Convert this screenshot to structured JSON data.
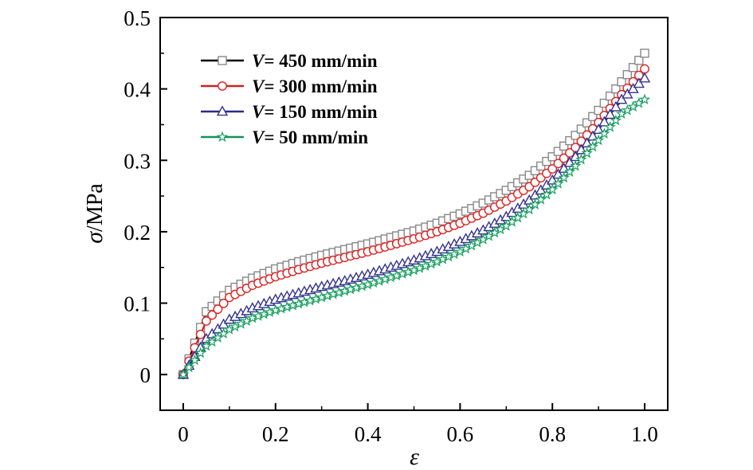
{
  "chart_data": {
    "type": "line",
    "xlabel": "ε",
    "ylabel_symbol": "σ",
    "ylabel_unit": "/MPa",
    "xlim": [
      -0.05,
      1.05
    ],
    "ylim": [
      -0.05,
      0.5
    ],
    "x_ticks": [
      0,
      0.2,
      0.4,
      0.6,
      0.8,
      1.0
    ],
    "x_tick_labels": [
      "0",
      "0.2",
      "0.4",
      "0.6",
      "0.8",
      "1.0"
    ],
    "y_ticks": [
      0,
      0.1,
      0.2,
      0.3,
      0.4,
      0.5
    ],
    "y_tick_labels": [
      "0",
      "0.1",
      "0.2",
      "0.3",
      "0.4",
      "0.5"
    ],
    "grid": false,
    "legend_position": "top-left",
    "x": [
      0,
      0.05,
      0.1,
      0.15,
      0.2,
      0.25,
      0.3,
      0.35,
      0.4,
      0.45,
      0.5,
      0.55,
      0.6,
      0.65,
      0.7,
      0.75,
      0.8,
      0.85,
      0.9,
      0.95,
      1.0
    ],
    "series": [
      {
        "name_prefix": "V",
        "name_suffix": "= 450 mm/min",
        "color": "#000000",
        "marker": "square",
        "marker_color": "#888888",
        "values": [
          0,
          0.088,
          0.118,
          0.135,
          0.148,
          0.158,
          0.167,
          0.175,
          0.183,
          0.192,
          0.201,
          0.212,
          0.225,
          0.24,
          0.258,
          0.279,
          0.305,
          0.335,
          0.37,
          0.41,
          0.45
        ]
      },
      {
        "name_prefix": "V",
        "name_suffix": "= 300 mm/min",
        "color": "#cc2222",
        "marker": "circle",
        "marker_color": "#dd2222",
        "values": [
          0,
          0.075,
          0.108,
          0.125,
          0.137,
          0.147,
          0.156,
          0.164,
          0.172,
          0.181,
          0.19,
          0.2,
          0.212,
          0.226,
          0.243,
          0.263,
          0.288,
          0.318,
          0.353,
          0.392,
          0.428
        ]
      },
      {
        "name_prefix": "V",
        "name_suffix": "= 150 mm/min",
        "color": "#2a2a8a",
        "marker": "triangle",
        "marker_color": "#33338f",
        "values": [
          0,
          0.05,
          0.077,
          0.093,
          0.105,
          0.114,
          0.123,
          0.131,
          0.14,
          0.15,
          0.16,
          0.172,
          0.186,
          0.202,
          0.221,
          0.244,
          0.272,
          0.305,
          0.343,
          0.385,
          0.415
        ]
      },
      {
        "name_prefix": "V",
        "name_suffix": "= 50 mm/min",
        "color": "#17915a",
        "marker": "star",
        "marker_color": "#18a060",
        "values": [
          0,
          0.04,
          0.063,
          0.079,
          0.09,
          0.099,
          0.108,
          0.117,
          0.126,
          0.136,
          0.146,
          0.158,
          0.172,
          0.189,
          0.208,
          0.231,
          0.259,
          0.292,
          0.328,
          0.365,
          0.385
        ]
      }
    ]
  }
}
